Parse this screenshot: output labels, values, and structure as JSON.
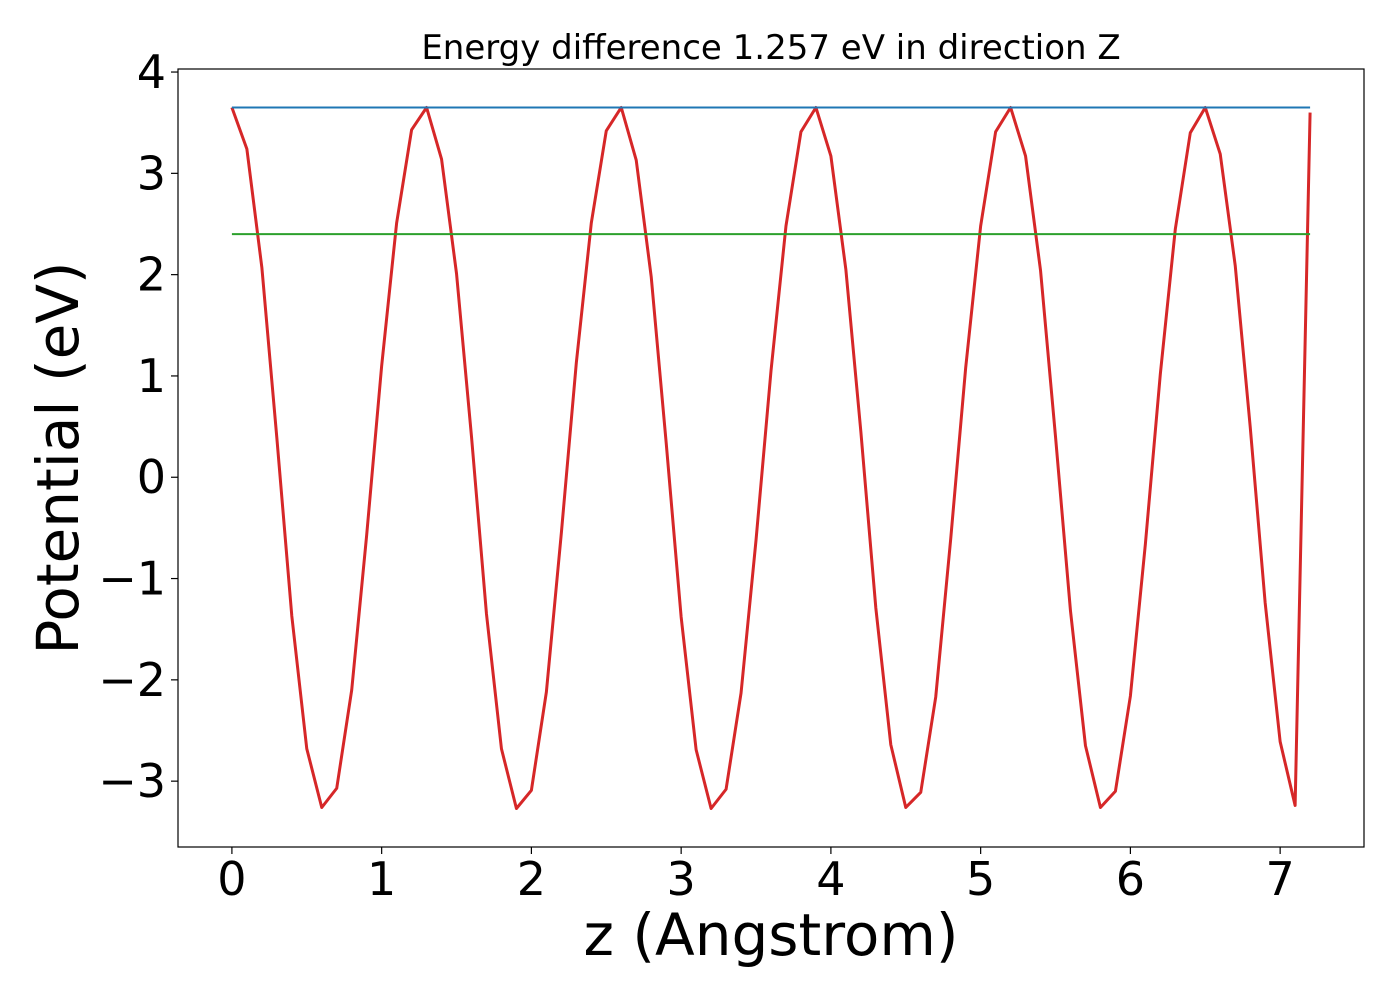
{
  "chart_data": {
    "type": "line",
    "title": "Energy difference 1.257 eV in direction Z",
    "xlabel": "z (Angstrom)",
    "ylabel": "Potential (eV)",
    "xlim": [
      -0.36,
      7.56
    ],
    "ylim": [
      -3.65,
      4.03
    ],
    "xticks": [
      0,
      1,
      2,
      3,
      4,
      5,
      6,
      7
    ],
    "yticks": [
      -3,
      -2,
      -1,
      0,
      1,
      2,
      3,
      4
    ],
    "xtick_labels": [
      "0",
      "1",
      "2",
      "3",
      "4",
      "5",
      "6",
      "7"
    ],
    "ytick_labels": [
      "−3",
      "−2",
      "−1",
      "0",
      "1",
      "2",
      "3",
      "4"
    ],
    "grid": false,
    "legend": "none",
    "series": [
      {
        "color": "#d62728",
        "x": [
          0.0,
          0.1,
          0.2,
          0.3,
          0.4,
          0.5,
          0.6,
          0.7,
          0.8,
          0.9,
          1.0,
          1.1,
          1.2,
          1.3,
          1.4,
          1.5,
          1.6,
          1.7,
          1.8,
          1.9,
          2.0,
          2.1,
          2.2,
          2.3,
          2.4,
          2.5,
          2.6,
          2.7,
          2.8,
          2.9,
          3.0,
          3.1,
          3.2,
          3.3,
          3.4,
          3.5,
          3.6,
          3.7,
          3.8,
          3.9,
          4.0,
          4.1,
          4.2,
          4.3,
          4.4,
          4.5,
          4.6,
          4.7,
          4.8,
          4.9,
          5.0,
          5.1,
          5.2,
          5.3,
          5.4,
          5.5,
          5.6,
          5.7,
          5.8,
          5.9,
          6.0,
          6.1,
          6.2,
          6.3,
          6.4,
          6.5,
          6.6,
          6.7,
          6.8,
          6.9,
          7.0,
          7.1,
          7.2
        ],
        "y": [
          3.65,
          3.24,
          2.07,
          0.39,
          -1.37,
          -2.68,
          -3.26,
          -3.07,
          -2.1,
          -0.57,
          1.1,
          2.51,
          3.43,
          3.65,
          3.14,
          2.01,
          0.4,
          -1.35,
          -2.68,
          -3.27,
          -3.09,
          -2.12,
          -0.55,
          1.13,
          2.51,
          3.42,
          3.65,
          3.13,
          1.98,
          0.34,
          -1.38,
          -2.69,
          -3.27,
          -3.08,
          -2.13,
          -0.62,
          1.05,
          2.48,
          3.41,
          3.65,
          3.17,
          2.05,
          0.45,
          -1.29,
          -2.64,
          -3.26,
          -3.11,
          -2.17,
          -0.61,
          1.08,
          2.48,
          3.41,
          3.65,
          3.17,
          2.04,
          0.4,
          -1.32,
          -2.65,
          -3.26,
          -3.1,
          -2.16,
          -0.66,
          1.02,
          2.45,
          3.4,
          3.65,
          3.19,
          2.09,
          0.5,
          -1.24,
          -2.61,
          -3.24,
          3.6
        ]
      },
      {
        "color": "#1f77b4",
        "x": [
          0.0,
          7.2
        ],
        "y": [
          3.65,
          3.65
        ]
      },
      {
        "color": "#2ca02c",
        "x": [
          0.0,
          7.2
        ],
        "y": [
          2.4,
          2.4
        ]
      }
    ]
  }
}
